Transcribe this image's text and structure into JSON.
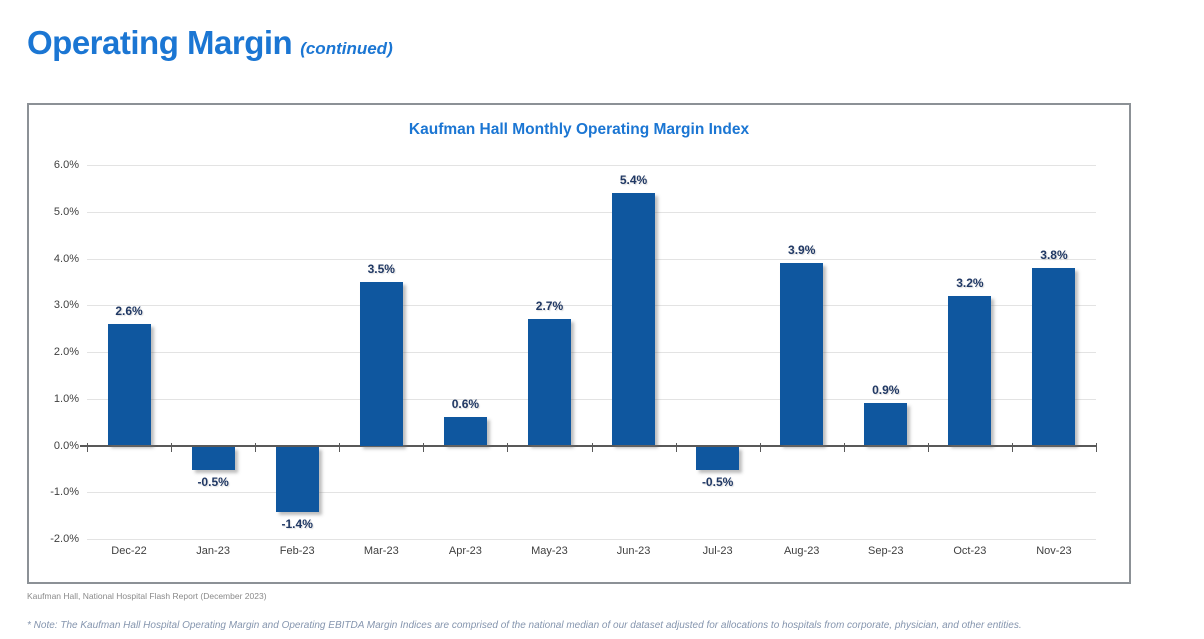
{
  "page": {
    "title": "Operating Margin",
    "title_suffix": "(continued)",
    "source": "Kaufman Hall, National Hospital Flash Report (December 2023)",
    "note": "* Note: The Kaufman Hall Hospital Operating Margin and Operating EBITDA Margin Indices are comprised of the national median of our dataset adjusted for allocations to hospitals from corporate, physician, and other entities."
  },
  "colors": {
    "accent_blue": "#1B76D3",
    "bar_blue": "#0F579F",
    "value_label_navy": "#203864",
    "gridline_gray": "#E3E3E3",
    "zero_axis_gray": "#595959",
    "box_border_gray": "#8C9196"
  },
  "chart_data": {
    "type": "bar",
    "title": "Kaufman Hall Monthly Operating Margin Index",
    "categories": [
      "Dec-22",
      "Jan-23",
      "Feb-23",
      "Mar-23",
      "Apr-23",
      "May-23",
      "Jun-23",
      "Jul-23",
      "Aug-23",
      "Sep-23",
      "Oct-23",
      "Nov-23"
    ],
    "values": [
      2.6,
      -0.5,
      -1.4,
      3.5,
      0.6,
      2.7,
      5.4,
      -0.5,
      3.9,
      0.9,
      3.2,
      3.8
    ],
    "value_labels": [
      "2.6%",
      "-0.5%",
      "-1.4%",
      "3.5%",
      "0.6%",
      "2.7%",
      "5.4%",
      "-0.5%",
      "3.9%",
      "0.9%",
      "3.2%",
      "3.8%"
    ],
    "ylim": [
      -2.0,
      6.0
    ],
    "ytick_step": 1.0,
    "ytick_labels": [
      "6.0%",
      "5.0%",
      "4.0%",
      "3.0%",
      "2.0%",
      "1.0%",
      "0.0%",
      "-1.0%",
      "-2.0%"
    ],
    "xlabel": "",
    "ylabel": "",
    "grid": "on",
    "legend": "none"
  }
}
